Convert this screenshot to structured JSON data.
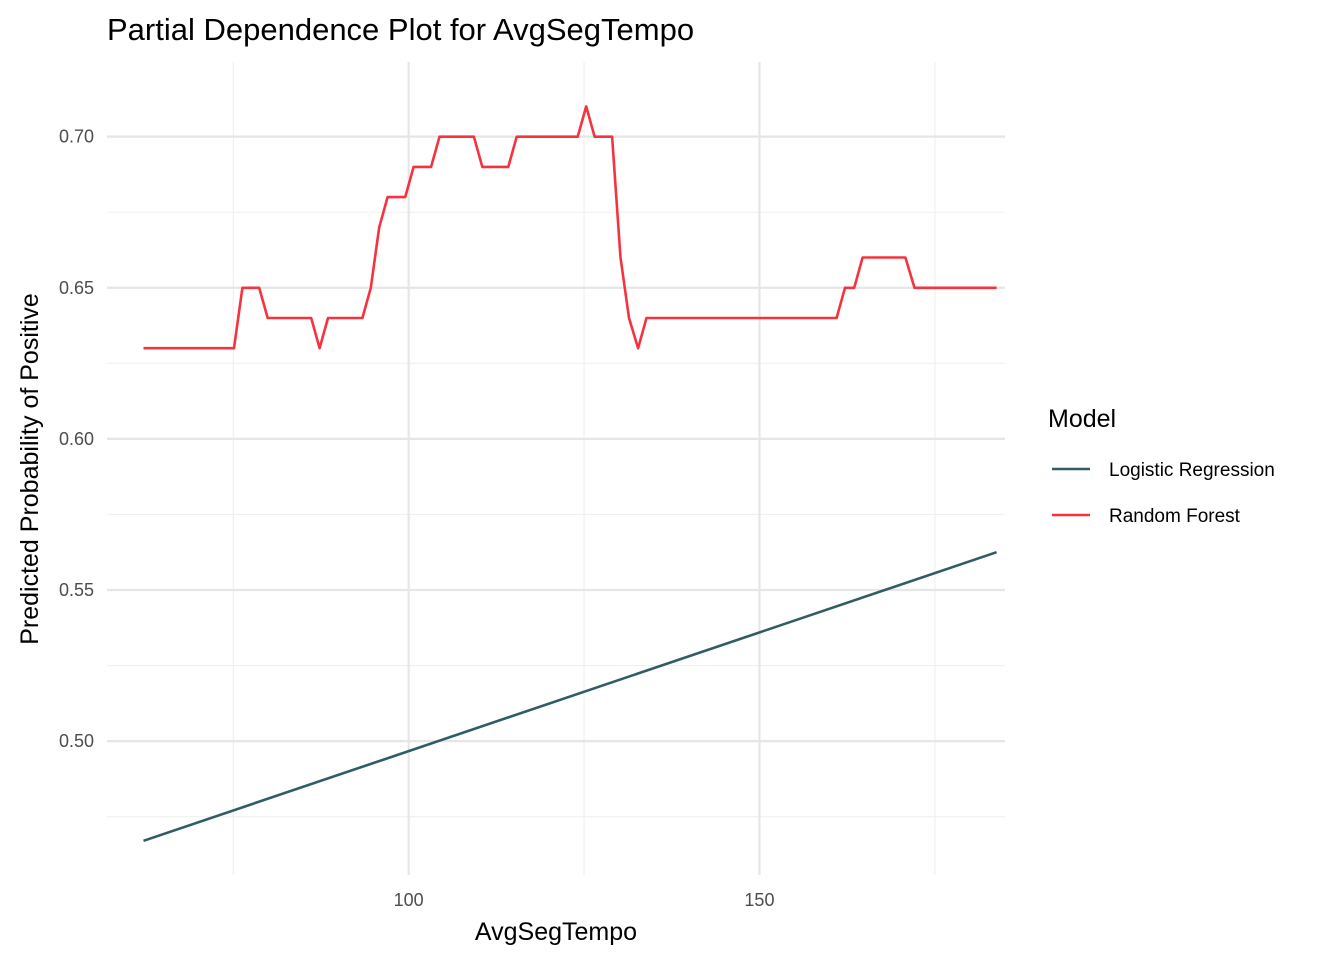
{
  "chart_data": {
    "type": "line",
    "title": "Partial Dependence Plot for AvgSegTempo",
    "xlabel": "AvgSegTempo",
    "ylabel": "Predicted Probability of Positive",
    "xlim": [
      57,
      185
    ],
    "ylim": [
      0.4557,
      0.7247
    ],
    "x_ticks": [
      100,
      150
    ],
    "x_tick_labels": [
      "100",
      "150"
    ],
    "x_minor_ticks": [
      75,
      125,
      175
    ],
    "y_ticks": [
      0.5,
      0.55,
      0.6,
      0.65,
      0.7
    ],
    "y_tick_labels": [
      "0.50",
      "0.55",
      "0.60",
      "0.65",
      "0.70"
    ],
    "y_minor_ticks": [
      0.475,
      0.525,
      0.575,
      0.625,
      0.675
    ],
    "grid": true,
    "legend": {
      "title": "Model",
      "position": "right"
    },
    "series": [
      {
        "name": "Logistic Regression",
        "color": "#2f5d62",
        "points": [
          [
            62.2,
            0.467
          ],
          [
            183.8,
            0.5625
          ]
        ]
      },
      {
        "name": "Random Forest",
        "color": "#f5333f",
        "points": [
          [
            62.2,
            0.63
          ],
          [
            75.1,
            0.63
          ],
          [
            76.3,
            0.65
          ],
          [
            78.7,
            0.65
          ],
          [
            79.9,
            0.64
          ],
          [
            86.1,
            0.64
          ],
          [
            87.3,
            0.63
          ],
          [
            88.5,
            0.64
          ],
          [
            93.4,
            0.64
          ],
          [
            94.6,
            0.65
          ],
          [
            95.8,
            0.67
          ],
          [
            97.0,
            0.68
          ],
          [
            99.5,
            0.68
          ],
          [
            100.7,
            0.69
          ],
          [
            103.2,
            0.69
          ],
          [
            104.4,
            0.7
          ],
          [
            109.3,
            0.7
          ],
          [
            110.5,
            0.69
          ],
          [
            114.2,
            0.69
          ],
          [
            115.4,
            0.7
          ],
          [
            124.1,
            0.7
          ],
          [
            125.3,
            0.71
          ],
          [
            126.5,
            0.7
          ],
          [
            129.0,
            0.7
          ],
          [
            130.2,
            0.66
          ],
          [
            131.4,
            0.64
          ],
          [
            132.7,
            0.63
          ],
          [
            133.9,
            0.64
          ],
          [
            161.0,
            0.64
          ],
          [
            162.2,
            0.65
          ],
          [
            163.5,
            0.65
          ],
          [
            164.7,
            0.66
          ],
          [
            170.8,
            0.66
          ],
          [
            172.1,
            0.65
          ],
          [
            183.8,
            0.65
          ]
        ]
      }
    ]
  }
}
